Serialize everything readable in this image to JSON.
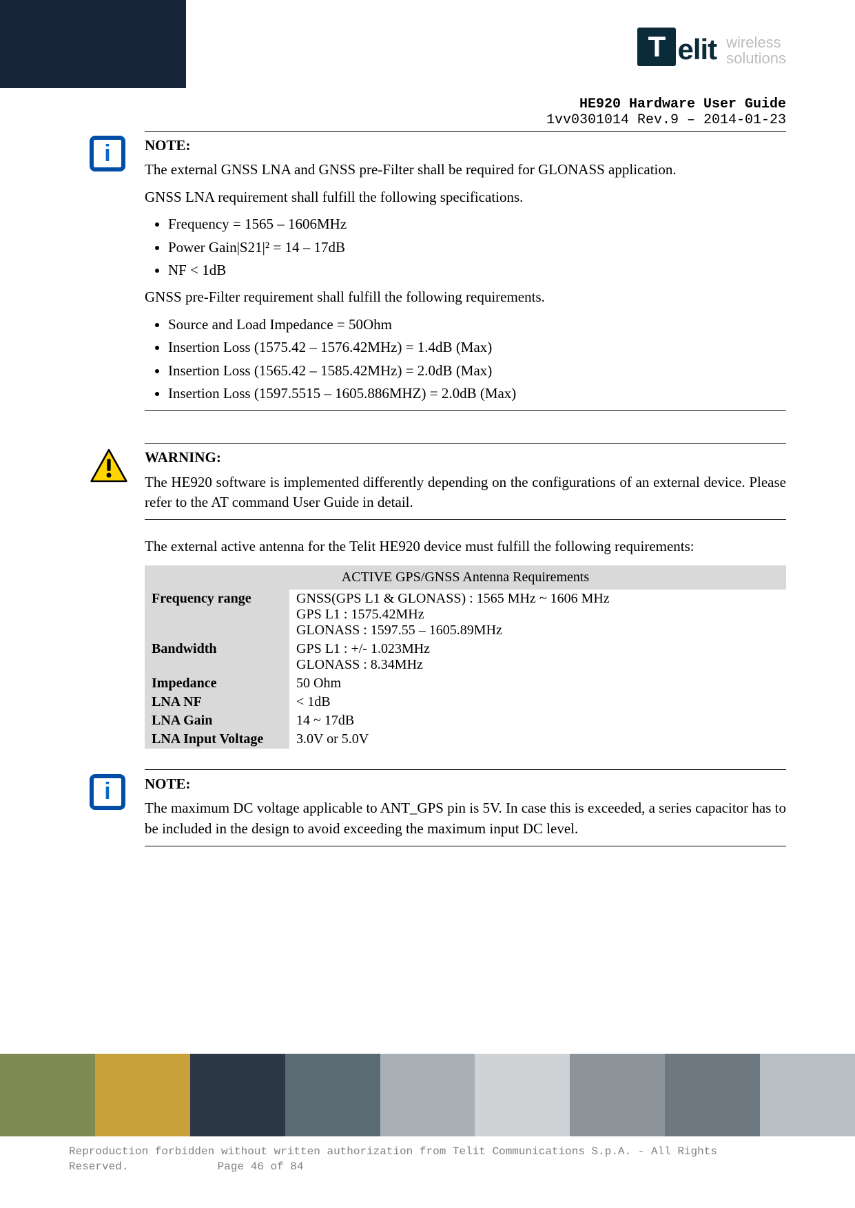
{
  "header": {
    "brand": "Telit",
    "tagline_line1": "wireless",
    "tagline_line2": "solutions",
    "doc_title": "HE920 Hardware User Guide",
    "doc_rev": "1vv0301014 Rev.9 – 2014-01-23"
  },
  "note1": {
    "label": "NOTE:",
    "p1": "The external GNSS LNA and GNSS pre-Filter shall be required for GLONASS application.",
    "p2": "GNSS LNA requirement shall fulfill the following specifications.",
    "lna_bullets": [
      "Frequency = 1565 – 1606MHz",
      "Power Gain|S21|² = 14 – 17dB",
      "NF < 1dB"
    ],
    "p3": "GNSS pre-Filter requirement shall fulfill the following requirements.",
    "filter_bullets": [
      "Source and Load Impedance = 50Ohm",
      "Insertion Loss (1575.42 – 1576.42MHz) = 1.4dB (Max)",
      "Insertion Loss (1565.42 – 1585.42MHz) = 2.0dB (Max)",
      "Insertion Loss (1597.5515 – 1605.886MHZ) = 2.0dB (Max)"
    ]
  },
  "warning": {
    "label": "WARNING:",
    "body": "The HE920 software is implemented differently depending on the configurations of an external device. Please refer to the AT command User Guide in detail."
  },
  "antenna_intro": "The external active antenna for the Telit HE920 device must fulfill the following requirements:",
  "table": {
    "title": "ACTIVE GPS/GNSS Antenna Requirements",
    "rows": [
      {
        "k": "Frequency range",
        "v": "GNSS(GPS L1 & GLONASS) : 1565 MHz ~ 1606 MHz\nGPS L1 : 1575.42MHz\nGLONASS : 1597.55 – 1605.89MHz"
      },
      {
        "k": "Bandwidth",
        "v": "GPS L1 : +/- 1.023MHz\nGLONASS : 8.34MHz"
      },
      {
        "k": "Impedance",
        "v": "50 Ohm"
      },
      {
        "k": "LNA NF",
        "v": "< 1dB"
      },
      {
        "k": "LNA  Gain",
        "v": "14 ~ 17dB"
      },
      {
        "k": "LNA Input Voltage",
        "v": "3.0V or 5.0V"
      }
    ]
  },
  "note2": {
    "label": "NOTE:",
    "body": "The maximum DC voltage applicable to ANT_GPS pin is 5V. In case this is exceeded, a series capacitor has to be included in the design to avoid exceeding the maximum input DC level."
  },
  "footer": {
    "line1": "Reproduction forbidden without written authorization from Telit Communications S.p.A. - All Rights",
    "line2": "Reserved.",
    "page": "Page 46 of 84"
  },
  "footer_strip_colors": [
    "#7d8a52",
    "#c9a13a",
    "#2d3846",
    "#5b6b73",
    "#a8b0b6",
    "#cfd3d6",
    "#8c949a",
    "#6d7880",
    "#b7bec4"
  ]
}
